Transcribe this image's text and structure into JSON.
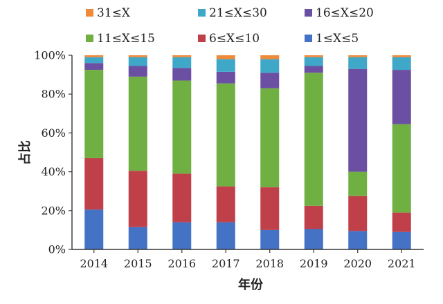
{
  "chart_data": {
    "type": "bar",
    "stacked": true,
    "title": "",
    "xlabel": "年份",
    "ylabel": "占比",
    "ylim": [
      0,
      100
    ],
    "y_ticks": [
      "0%",
      "20%",
      "40%",
      "60%",
      "80%",
      "100%"
    ],
    "grid": false,
    "legend_position": "top",
    "categories": [
      "2014",
      "2015",
      "2016",
      "2017",
      "2018",
      "2019",
      "2020",
      "2021"
    ],
    "series": [
      {
        "name": "1≤X≤5",
        "color": "#4472c4",
        "values": [
          20.5,
          11.5,
          14,
          14,
          10,
          10.5,
          9.5,
          9
        ]
      },
      {
        "name": "6≤X≤10",
        "color": "#c0404a",
        "values": [
          26.5,
          29,
          25,
          18.5,
          22,
          12,
          18,
          10
        ]
      },
      {
        "name": "11≤X≤15",
        "color": "#70b043",
        "values": [
          45.5,
          48.5,
          48,
          53,
          51,
          68.5,
          12.5,
          45.5
        ]
      },
      {
        "name": "16≤X≤20",
        "color": "#6a4fa3",
        "values": [
          3.5,
          5.5,
          6.5,
          6,
          8,
          3.5,
          53,
          28
        ]
      },
      {
        "name": "21≤X≤30",
        "color": "#3fa7c8",
        "values": [
          3,
          4.5,
          5.5,
          6.5,
          7,
          4.5,
          6,
          6.5
        ]
      },
      {
        "name": "31≤X",
        "color": "#ef8a3a",
        "values": [
          1,
          1,
          1,
          2,
          2,
          1,
          1,
          1
        ]
      }
    ],
    "legend_order": [
      "31≤X",
      "21≤X≤30",
      "16≤X≤20",
      "11≤X≤15",
      "6≤X≤10",
      "1≤X≤5"
    ]
  }
}
